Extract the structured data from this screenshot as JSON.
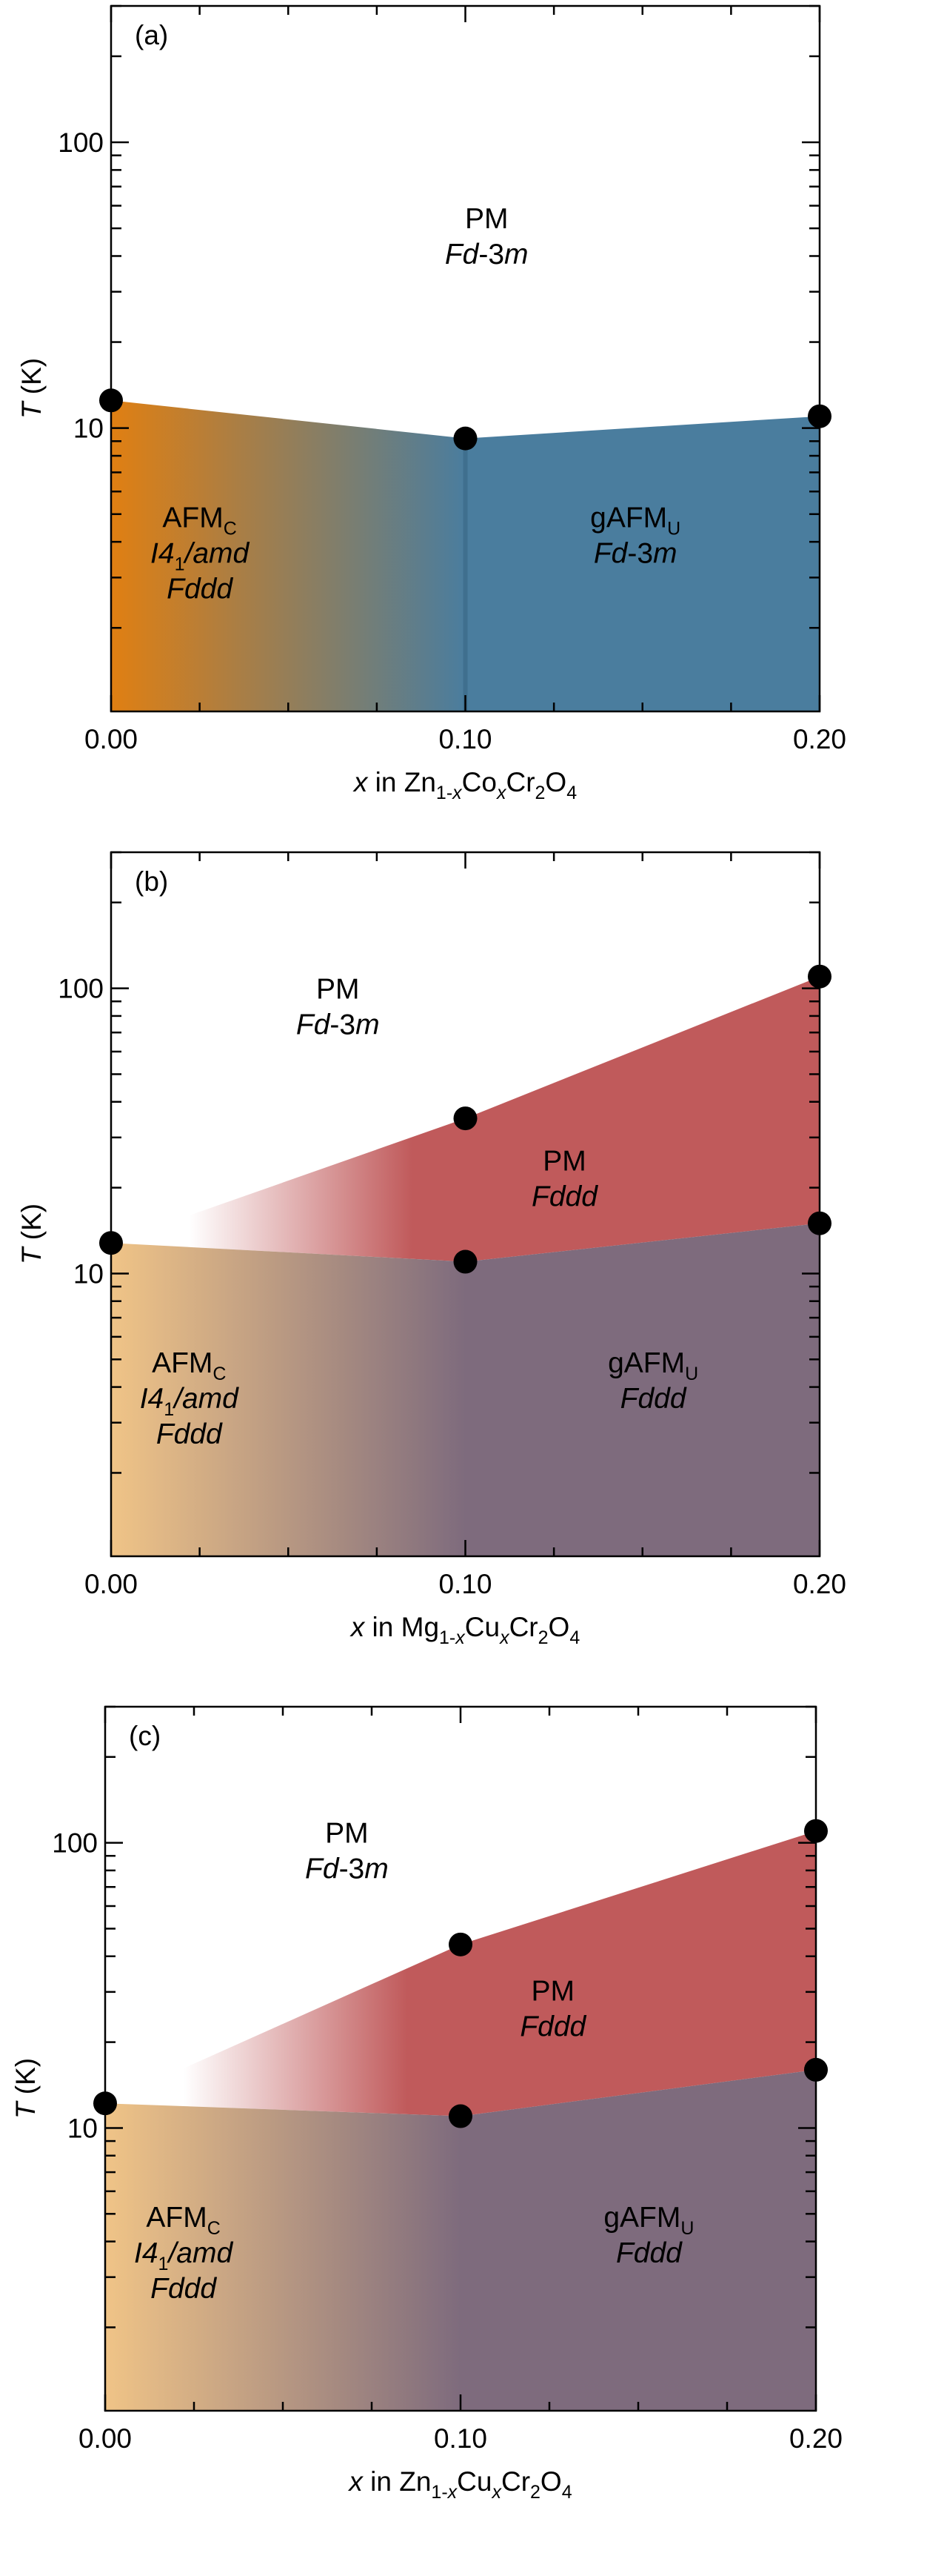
{
  "chart_data": [
    {
      "type": "phase-diagram",
      "panel_label": "(a)",
      "xlabel": {
        "var": "x",
        "pre": " in Zn",
        "sub1": "1-",
        "sub1_it": "x",
        "mid": "Co",
        "sub2_it": "x",
        "post": "Cr",
        "sub3": "2",
        "post2": "O",
        "sub4": "4"
      },
      "ylabel": {
        "var": "T",
        "rest": " (K)"
      },
      "x_ticks": [
        {
          "value": 0.0,
          "label": "0.00"
        },
        {
          "value": 0.1,
          "label": "0.10"
        },
        {
          "value": 0.2,
          "label": "0.20"
        }
      ],
      "y_ticks": [
        {
          "value": 10,
          "label": "10"
        },
        {
          "value": 100,
          "label": "100"
        }
      ],
      "ylim": [
        1.02,
        300
      ],
      "xlim": [
        0,
        0.2
      ],
      "yscale": "log",
      "points": [
        {
          "x": 0.0,
          "y": 12.5
        },
        {
          "x": 0.1,
          "y": 9.2
        },
        {
          "x": 0.2,
          "y": 11.0
        }
      ],
      "regions": [
        {
          "name": "PM",
          "group": "Fd-3m",
          "at": [
            0.106,
            50
          ]
        },
        {
          "name": "AFM",
          "name_sub": "C",
          "group_html": [
            "I4",
            "1",
            "/amd"
          ],
          "group2": "Fddd",
          "at": [
            0.025,
            4.5
          ]
        },
        {
          "name": "gAFM",
          "name_sub": "U",
          "group": "Fd-3m",
          "at": [
            0.148,
            4.5
          ]
        }
      ],
      "colors": {
        "afm": "#e07f12",
        "gafm": "#4a7d9e"
      }
    },
    {
      "type": "phase-diagram",
      "panel_label": "(b)",
      "xlabel": {
        "var": "x",
        "pre": " in Mg",
        "sub1": "1-",
        "sub1_it": "x",
        "mid": "Cu",
        "sub2_it": "x",
        "post": "Cr",
        "sub3": "2",
        "post2": "O",
        "sub4": "4"
      },
      "ylabel": {
        "var": "T",
        "rest": " (K)"
      },
      "x_ticks": [
        {
          "value": 0.0,
          "label": "0.00"
        },
        {
          "value": 0.1,
          "label": "0.10"
        },
        {
          "value": 0.2,
          "label": "0.20"
        }
      ],
      "y_ticks": [
        {
          "value": 10,
          "label": "10"
        },
        {
          "value": 100,
          "label": "100"
        }
      ],
      "ylim": [
        1.02,
        300
      ],
      "xlim": [
        0,
        0.2
      ],
      "yscale": "log",
      "points": [
        {
          "x": 0.0,
          "y": 12.8
        },
        {
          "x": 0.1,
          "y": 35.0
        },
        {
          "x": 0.1,
          "y": 11.0
        },
        {
          "x": 0.2,
          "y": 110.0
        },
        {
          "x": 0.2,
          "y": 15.0
        }
      ],
      "regions": [
        {
          "name": "PM",
          "group": "Fd-3m",
          "at": [
            0.064,
            92
          ]
        },
        {
          "name": "PM",
          "group": "Fddd",
          "at": [
            0.128,
            23
          ]
        },
        {
          "name": "AFM",
          "name_sub": "C",
          "group_html": [
            "I4",
            "1",
            "/amd"
          ],
          "group2": "Fddd",
          "at": [
            0.022,
            4.5
          ]
        },
        {
          "name": "gAFM",
          "name_sub": "U",
          "group": "Fddd",
          "at": [
            0.153,
            4.5
          ]
        }
      ],
      "colors": {
        "afm": "#f0c487",
        "gafm": "#7e6b7d",
        "pm_fddd": "#c05a5b"
      }
    },
    {
      "type": "phase-diagram",
      "panel_label": "(c)",
      "xlabel": {
        "var": "x",
        "pre": " in Zn",
        "sub1": "1-",
        "sub1_it": "x",
        "mid": "Cu",
        "sub2_it": "x",
        "post": "Cr",
        "sub3": "2",
        "post2": "O",
        "sub4": "4"
      },
      "ylabel": {
        "var": "T",
        "rest": " (K)"
      },
      "x_ticks": [
        {
          "value": 0.0,
          "label": "0.00"
        },
        {
          "value": 0.1,
          "label": "0.10"
        },
        {
          "value": 0.2,
          "label": "0.20"
        }
      ],
      "y_ticks": [
        {
          "value": 10,
          "label": "10"
        },
        {
          "value": 100,
          "label": "100"
        }
      ],
      "ylim": [
        1.02,
        300
      ],
      "xlim": [
        0,
        0.2
      ],
      "yscale": "log",
      "points": [
        {
          "x": 0.0,
          "y": 12.2
        },
        {
          "x": 0.1,
          "y": 44.0
        },
        {
          "x": 0.1,
          "y": 11.0
        },
        {
          "x": 0.2,
          "y": 110.0
        },
        {
          "x": 0.2,
          "y": 16.0
        }
      ],
      "regions": [
        {
          "name": "PM",
          "group": "Fd-3m",
          "at": [
            0.068,
            100
          ]
        },
        {
          "name": "PM",
          "group": "Fddd",
          "at": [
            0.126,
            28
          ]
        },
        {
          "name": "AFM",
          "name_sub": "C",
          "group_html": [
            "I4",
            "1",
            "/amd"
          ],
          "group2": "Fddd",
          "at": [
            0.022,
            4.5
          ]
        },
        {
          "name": "gAFM",
          "name_sub": "U",
          "group": "Fddd",
          "at": [
            0.153,
            4.5
          ]
        }
      ],
      "colors": {
        "afm": "#f0c487",
        "gafm": "#7e6b7d",
        "pm_fddd": "#c05a5b"
      }
    }
  ]
}
